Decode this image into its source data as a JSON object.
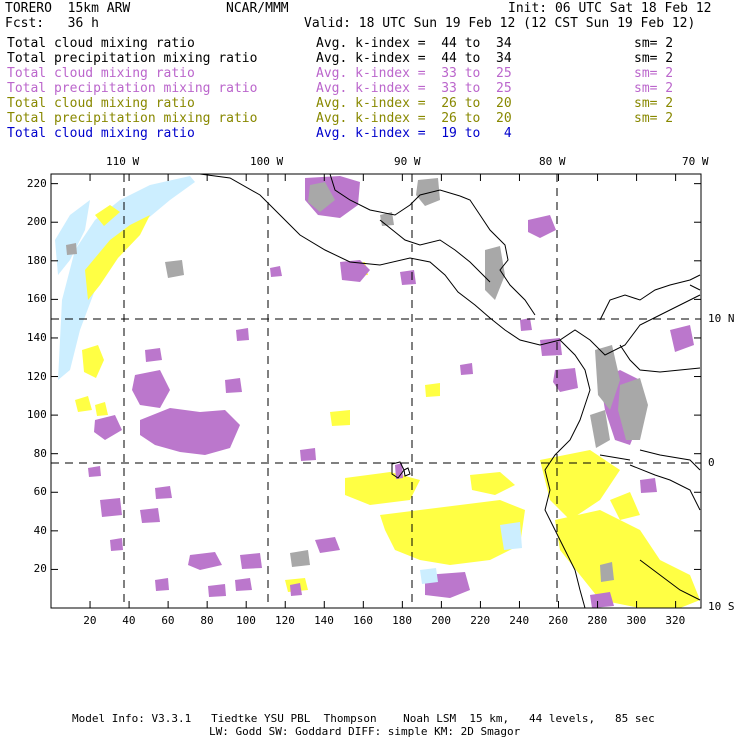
{
  "header": {
    "model": "TORERO  15km ARW",
    "org": "NCAR/MMM",
    "init": "Init: 06 UTC Sat 18 Feb 12",
    "fcst": "Fcst:   36 h",
    "valid": "Valid: 18 UTC Sun 19 Feb 12 (12 CST Sun 19 Feb 12)"
  },
  "legend": [
    {
      "field": "Total cloud mixing ratio",
      "kindex": "Avg. k-index =  44 to  34",
      "sm": "sm= 2",
      "color": "#000000"
    },
    {
      "field": "Total precipitation mixing ratio",
      "kindex": "Avg. k-index =  44 to  34",
      "sm": "sm= 2",
      "color": "#000000"
    },
    {
      "field": "Total cloud mixing ratio",
      "kindex": "Avg. k-index =  33 to  25",
      "sm": "sm= 2",
      "color": "#bb66cc"
    },
    {
      "field": "Total precipitation mixing ratio",
      "kindex": "Avg. k-index =  33 to  25",
      "sm": "sm= 2",
      "color": "#bb66cc"
    },
    {
      "field": "Total cloud mixing ratio",
      "kindex": "Avg. k-index =  26 to  20",
      "sm": "sm= 2",
      "color": "#888800"
    },
    {
      "field": "Total precipitation mixing ratio",
      "kindex": "Avg. k-index =  26 to  20",
      "sm": "sm= 2",
      "color": "#888800"
    },
    {
      "field": "Total cloud mixing ratio",
      "kindex": "Avg. k-index =  19 to   4",
      "sm": "",
      "color": "#0000cc"
    }
  ],
  "axes": {
    "lon_labels": [
      "110 W",
      "100 W",
      "90 W",
      "80 W",
      "70 W"
    ],
    "lat_labels": [
      "10 N",
      "0",
      "10 S"
    ],
    "x_ticks": [
      "20",
      "40",
      "60",
      "80",
      "100",
      "120",
      "140",
      "160",
      "180",
      "200",
      "220",
      "240",
      "260",
      "280",
      "300",
      "320"
    ],
    "y_ticks": [
      "220",
      "200",
      "180",
      "160",
      "140",
      "120",
      "100",
      "80",
      "60",
      "40",
      "20"
    ]
  },
  "footer": {
    "line1": "Model Info: V3.3.1   Tiedtke YSU PBL  Thompson    Noah LSM  15 km,   44 levels,   85 sec",
    "line2": "LW: Godd SW: Goddard DIFF: simple KM: 2D Smagor"
  },
  "colors": {
    "gray": "#a8a8a8",
    "purple": "#bb77cc",
    "yellow": "#ffff44",
    "lightblue": "#cceeff"
  }
}
